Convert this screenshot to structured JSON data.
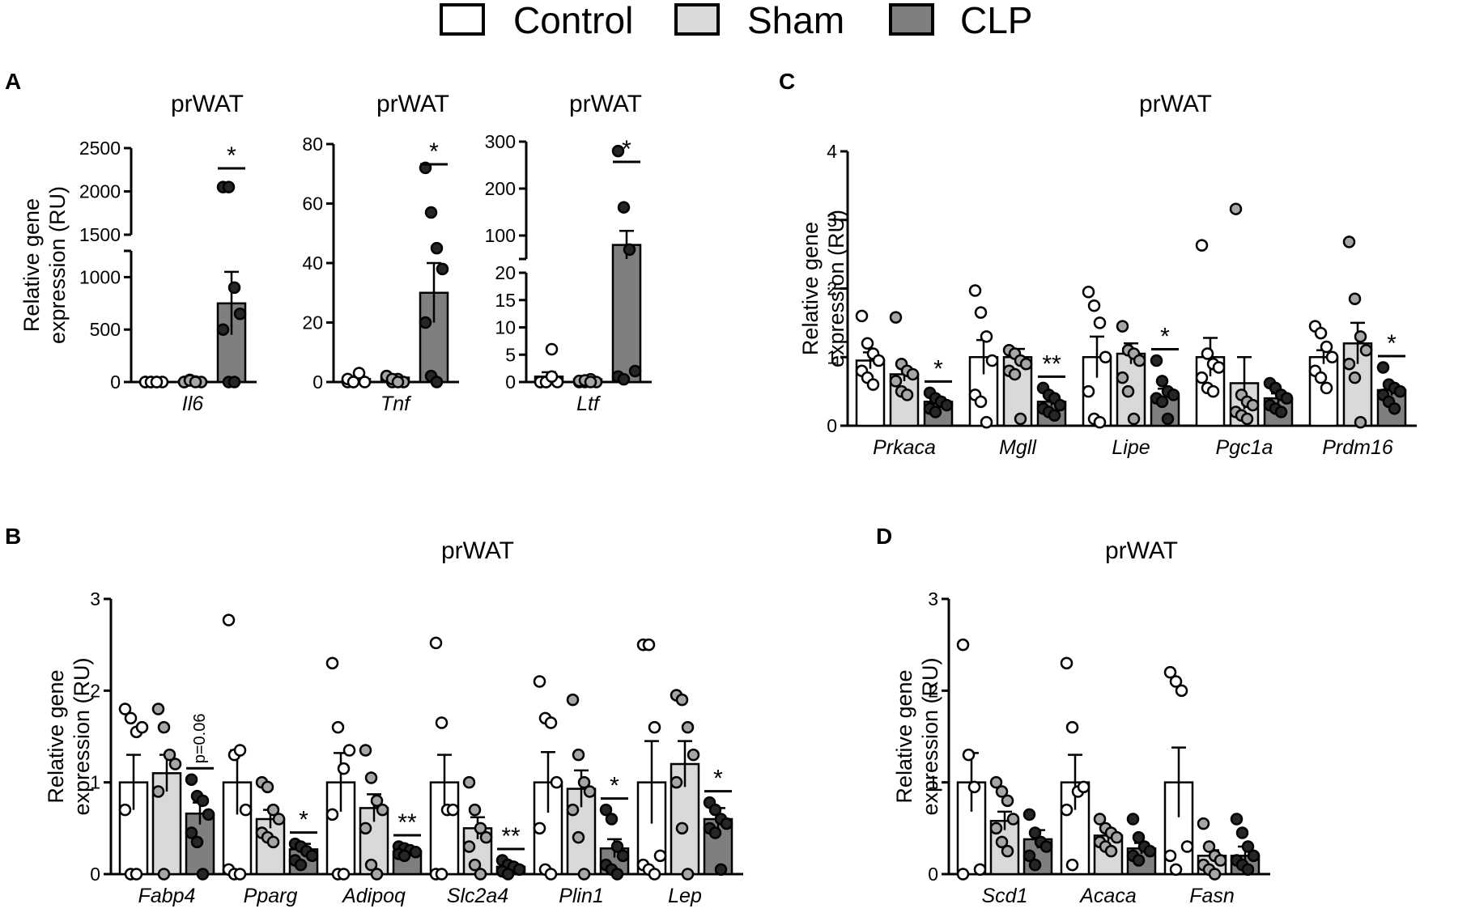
{
  "legend": [
    {
      "label": "Control",
      "color": "#ffffff"
    },
    {
      "label": "Sham",
      "color": "#d9d9d9"
    },
    {
      "label": "CLP",
      "color": "#7f7f7f"
    }
  ],
  "panel_labels": {
    "A": "A",
    "B": "B",
    "C": "C",
    "D": "D"
  },
  "colors": {
    "control_fill": "#ffffff",
    "sham_fill": "#d9d9d9",
    "clp_fill": "#7f7f7f",
    "control_dot": "#ffffff",
    "sham_dot": "#a6a6a6",
    "clp_dot": "#262626",
    "stroke": "#000000"
  },
  "chart_data": [
    {
      "id": "A1",
      "type": "bar",
      "title": "prWAT",
      "ylabel": "Relative gene expression (RU)",
      "ylim": [
        0,
        2500
      ],
      "axis_break": [
        1250,
        1500
      ],
      "yticks": [
        "0",
        "500",
        "1000",
        "1500",
        "2000",
        "2500"
      ],
      "categories": [
        "Il6"
      ],
      "series": [
        {
          "name": "Control",
          "values": [
            1
          ],
          "error": [
            0.5
          ],
          "points": [
            [
              0,
              0,
              0,
              0,
              0,
              0,
              0
            ]
          ]
        },
        {
          "name": "Sham",
          "values": [
            10
          ],
          "error": [
            5
          ],
          "points": [
            [
              0,
              20,
              5,
              0,
              0,
              15,
              0
            ]
          ]
        },
        {
          "name": "CLP",
          "values": [
            750
          ],
          "error": [
            300
          ],
          "points": [
            [
              2050,
              2050,
              900,
              650,
              500,
              0,
              0
            ]
          ]
        }
      ],
      "significance": [
        {
          "category": 0,
          "label": "*"
        }
      ]
    },
    {
      "id": "A2",
      "type": "bar",
      "title": "prWAT",
      "ylabel": "",
      "ylim": [
        0,
        80
      ],
      "yticks": [
        "0",
        "20",
        "40",
        "60",
        "80"
      ],
      "categories": [
        "Tnf"
      ],
      "series": [
        {
          "name": "Control",
          "values": [
            1
          ],
          "error": [
            0.5
          ],
          "points": [
            [
              0,
              0,
              3,
              0,
              1,
              0
            ]
          ]
        },
        {
          "name": "Sham",
          "values": [
            1.5
          ],
          "error": [
            0.7
          ],
          "points": [
            [
              2,
              0,
              1,
              0,
              2,
              1,
              0
            ]
          ]
        },
        {
          "name": "CLP",
          "values": [
            30
          ],
          "error": [
            10
          ],
          "points": [
            [
              72,
              57,
              45,
              38,
              20,
              2,
              0
            ]
          ]
        }
      ],
      "significance": [
        {
          "category": 0,
          "label": "*"
        }
      ]
    },
    {
      "id": "A3",
      "type": "bar",
      "title": "prWAT",
      "ylabel": "",
      "ylim": [
        0,
        300
      ],
      "axis_break": [
        20,
        50
      ],
      "yticks": [
        "0",
        "5",
        "10",
        "15",
        "20",
        "100",
        "200",
        "300"
      ],
      "categories": [
        "Ltf"
      ],
      "series": [
        {
          "name": "Control",
          "values": [
            1
          ],
          "error": [
            0.8
          ],
          "points": [
            [
              0,
              0,
              6,
              0,
              0,
              0,
              1
            ]
          ]
        },
        {
          "name": "Sham",
          "values": [
            0.5
          ],
          "error": [
            0.3
          ],
          "points": [
            [
              0,
              0,
              0.5,
              0,
              0.2,
              0.3,
              0
            ]
          ]
        },
        {
          "name": "CLP",
          "values": [
            80
          ],
          "error": [
            30
          ],
          "points": [
            [
              280,
              160,
              70,
              2,
              1,
              0.5
            ]
          ]
        }
      ],
      "significance": [
        {
          "category": 0,
          "label": "*"
        }
      ]
    },
    {
      "id": "B",
      "type": "bar",
      "title": "prWAT",
      "ylabel": "Relative gene expression (RU)",
      "ylim": [
        0,
        3
      ],
      "yticks": [
        "0",
        "1",
        "2",
        "3"
      ],
      "categories": [
        "Fabp4",
        "Pparg",
        "Adipoq",
        "Slc2a4",
        "Plin1",
        "Lep"
      ],
      "series": [
        {
          "name": "Control",
          "values": [
            1.0,
            1.0,
            1.0,
            1.0,
            1.0,
            1.0
          ],
          "error": [
            0.3,
            0.35,
            0.32,
            0.3,
            0.33,
            0.45
          ],
          "points": [
            [
              1.8,
              1.7,
              1.55,
              1.6,
              0.7,
              0,
              0
            ],
            [
              2.77,
              1.3,
              1.35,
              0.7,
              0.05,
              0,
              0
            ],
            [
              2.3,
              1.6,
              1.15,
              1.35,
              0.65,
              0,
              0
            ],
            [
              2.52,
              1.65,
              0.7,
              0.7,
              0,
              0
            ],
            [
              2.1,
              1.7,
              1.65,
              1.0,
              0.5,
              0.05,
              0
            ],
            [
              2.5,
              2.5,
              1.6,
              0.2,
              0.1,
              0.05,
              0
            ]
          ]
        },
        {
          "name": "Sham",
          "values": [
            1.1,
            0.6,
            0.72,
            0.5,
            0.93,
            1.2
          ],
          "error": [
            0.2,
            0.1,
            0.15,
            0.12,
            0.2,
            0.25
          ],
          "points": [
            [
              1.8,
              1.6,
              1.3,
              1.2,
              0.9,
              0
            ],
            [
              1.0,
              0.95,
              0.7,
              0.6,
              0.45,
              0.4,
              0.35
            ],
            [
              1.35,
              1.05,
              0.8,
              0.7,
              0.5,
              0.1,
              0
            ],
            [
              1.0,
              0.7,
              0.5,
              0.4,
              0.3,
              0.1,
              0
            ],
            [
              1.9,
              1.3,
              1.0,
              0.9,
              0.7,
              0.4,
              0
            ],
            [
              1.95,
              1.9,
              1.6,
              1.3,
              1.0,
              0.5,
              0
            ]
          ]
        },
        {
          "name": "CLP",
          "values": [
            0.66,
            0.27,
            0.25,
            0.08,
            0.28,
            0.6
          ],
          "error": [
            0.12,
            0.06,
            0.03,
            0.04,
            0.1,
            0.12
          ],
          "points": [
            [
              1.03,
              0.85,
              0.8,
              0.65,
              0.45,
              0.35,
              0.0
            ],
            [
              0.33,
              0.3,
              0.25,
              0.2,
              0.15,
              0.1
            ],
            [
              0.3,
              0.28,
              0.26,
              0.24,
              0.22,
              0.2
            ],
            [
              0.15,
              0.1,
              0.08,
              0.05,
              0.03,
              0.0
            ],
            [
              0.7,
              0.6,
              0.3,
              0.2,
              0.1,
              0.05,
              0.0
            ],
            [
              0.78,
              0.7,
              0.6,
              0.55,
              0.5,
              0.45,
              0.05
            ]
          ]
        }
      ],
      "significance": [
        {
          "category": 0,
          "label": "p=0.06"
        },
        {
          "category": 1,
          "label": "*"
        },
        {
          "category": 2,
          "label": "**"
        },
        {
          "category": 3,
          "label": "**"
        },
        {
          "category": 4,
          "label": "*"
        },
        {
          "category": 5,
          "label": "*"
        }
      ]
    },
    {
      "id": "C",
      "type": "bar",
      "title": "prWAT",
      "ylabel": "Relative gene expression (RU)",
      "ylim": [
        0,
        4
      ],
      "yticks": [
        "0",
        "1",
        "2",
        "3",
        "4"
      ],
      "categories": [
        "Prkaca",
        "Mgll",
        "Lipe",
        "Pgc1a",
        "Prdm16"
      ],
      "series": [
        {
          "name": "Control",
          "values": [
            0.95,
            1.0,
            1.0,
            1.0,
            1.0
          ],
          "error": [
            0.12,
            0.25,
            0.3,
            0.28,
            0.1
          ],
          "points": [
            [
              1.6,
              1.2,
              1.05,
              0.95,
              0.8,
              0.7,
              0.6
            ],
            [
              1.97,
              1.65,
              1.3,
              0.95,
              0.45,
              0.35,
              0.05
            ],
            [
              1.95,
              1.75,
              1.5,
              1.0,
              0.5,
              0.1,
              0.05
            ],
            [
              2.63,
              1.05,
              0.9,
              0.85,
              0.7,
              0.55,
              0.5
            ],
            [
              1.45,
              1.35,
              1.15,
              1.0,
              0.8,
              0.7,
              0.55
            ]
          ]
        },
        {
          "name": "Sham",
          "values": [
            0.75,
            1.0,
            1.05,
            0.62,
            1.2
          ],
          "error": [
            0.1,
            0.12,
            0.15,
            0.38,
            0.3
          ],
          "points": [
            [
              1.58,
              0.9,
              0.8,
              0.75,
              0.65,
              0.5,
              0.45
            ],
            [
              1.1,
              1.05,
              0.95,
              0.9,
              0.8,
              0.75,
              0.1
            ],
            [
              1.45,
              1.1,
              1.05,
              0.95,
              0.7,
              0.5,
              0.1
            ],
            [
              3.16,
              0.45,
              0.35,
              0.3,
              0.2,
              0.15,
              0.1
            ],
            [
              2.68,
              1.85,
              1.3,
              1.1,
              0.9,
              0.7,
              0.05
            ]
          ]
        },
        {
          "name": "CLP",
          "values": [
            0.35,
            0.35,
            0.42,
            0.4,
            0.52
          ],
          "error": [
            0.06,
            0.06,
            0.12,
            0.07,
            0.08
          ],
          "points": [
            [
              0.48,
              0.4,
              0.35,
              0.3,
              0.25,
              0.2
            ],
            [
              0.55,
              0.45,
              0.4,
              0.3,
              0.25,
              0.2,
              0.15
            ],
            [
              0.95,
              0.65,
              0.5,
              0.45,
              0.4,
              0.35,
              0.1
            ],
            [
              0.62,
              0.55,
              0.45,
              0.4,
              0.3,
              0.25,
              0.2
            ],
            [
              0.85,
              0.6,
              0.55,
              0.5,
              0.45,
              0.35,
              0.25
            ]
          ]
        }
      ],
      "significance": [
        {
          "category": 0,
          "label": "*"
        },
        {
          "category": 1,
          "label": "**"
        },
        {
          "category": 2,
          "label": "*"
        },
        {
          "category": 4,
          "label": "*"
        }
      ]
    },
    {
      "id": "D",
      "type": "bar",
      "title": "prWAT",
      "ylabel": "Relative gene expression (RU)",
      "ylim": [
        0,
        3
      ],
      "yticks": [
        "0",
        "1",
        "2",
        "3"
      ],
      "categories": [
        "Scd1",
        "Acaca",
        "Fasn"
      ],
      "series": [
        {
          "name": "Control",
          "values": [
            1.0,
            1.0,
            1.0
          ],
          "error": [
            0.32,
            0.3,
            0.38
          ],
          "points": [
            [
              2.5,
              1.3,
              0.95,
              0.05,
              0.0
            ],
            [
              2.3,
              1.6,
              0.9,
              0.95,
              0.7,
              0.1
            ],
            [
              2.2,
              2.1,
              2.0,
              0.3,
              0.2,
              0.05
            ]
          ]
        },
        {
          "name": "Sham",
          "values": [
            0.58,
            0.42,
            0.2
          ],
          "error": [
            0.1,
            0.06,
            0.06
          ],
          "points": [
            [
              1.0,
              0.9,
              0.8,
              0.6,
              0.5,
              0.35,
              0.25
            ],
            [
              0.6,
              0.5,
              0.45,
              0.4,
              0.35,
              0.3,
              0.25
            ],
            [
              0.55,
              0.3,
              0.2,
              0.15,
              0.1,
              0.05,
              0.0
            ]
          ]
        },
        {
          "name": "CLP",
          "values": [
            0.38,
            0.28,
            0.2
          ],
          "error": [
            0.1,
            0.06,
            0.1
          ],
          "points": [
            [
              0.65,
              0.45,
              0.35,
              0.3,
              0.2,
              0.1
            ],
            [
              0.6,
              0.4,
              0.3,
              0.25,
              0.2,
              0.15
            ],
            [
              0.6,
              0.45,
              0.3,
              0.2,
              0.15,
              0.1,
              0.05
            ]
          ]
        }
      ],
      "significance": []
    }
  ]
}
